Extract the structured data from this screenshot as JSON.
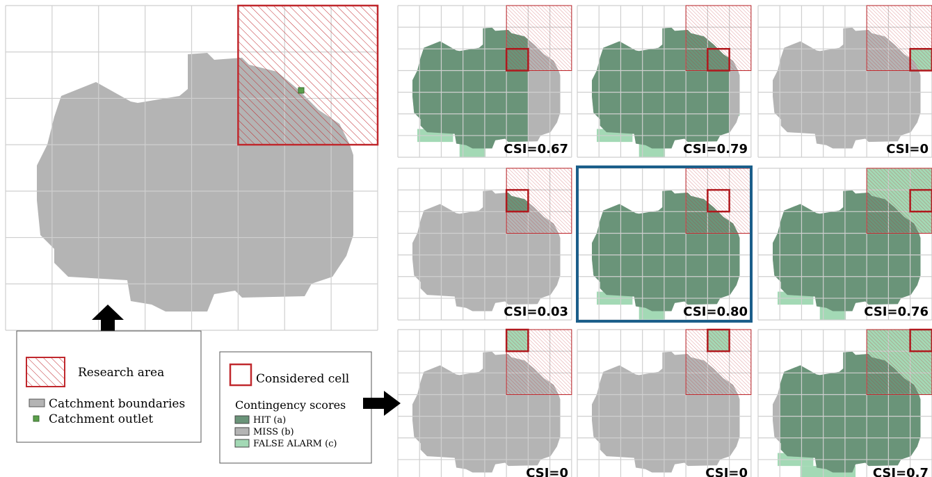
{
  "panels": [
    {
      "csi": "CSI=0.67"
    },
    {
      "csi": "CSI=0.79"
    },
    {
      "csi": "CSI=0"
    },
    {
      "csi": "CSI=0.03"
    },
    {
      "csi": "CSI=0.80"
    },
    {
      "csi": "CSI=0.76"
    },
    {
      "csi": "CSI=0"
    },
    {
      "csi": "CSI=0"
    },
    {
      "csi": "CSI=0.7"
    }
  ],
  "legend": {
    "research_area": "Research area",
    "catchment_boundaries": "Catchment boundaries",
    "catchment_outlet": "Catchment outlet"
  },
  "legend2": {
    "considered_cell": "Considered cell",
    "contingency_title": "Contingency scores",
    "items": [
      "HIT (a)",
      "MISS (b)",
      "FALSE ALARM (c)"
    ]
  }
}
